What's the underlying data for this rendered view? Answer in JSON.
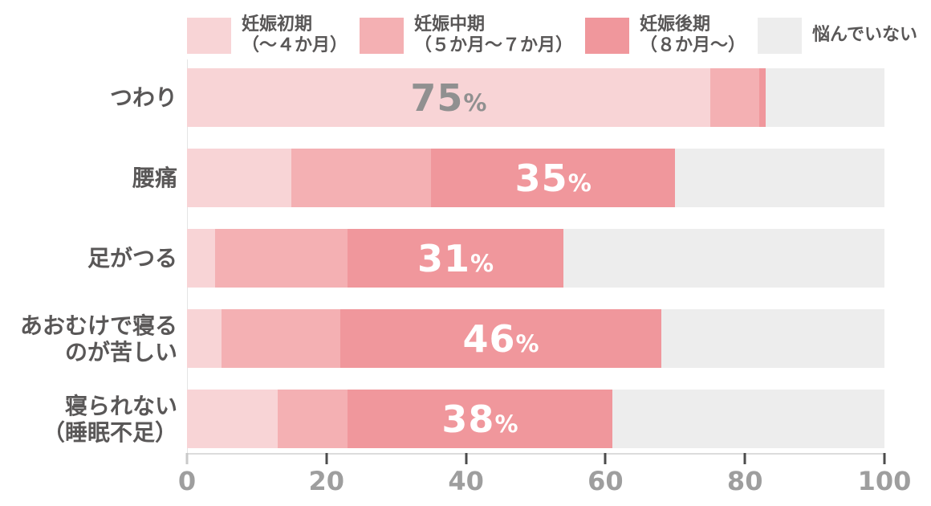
{
  "chart_data": {
    "type": "bar",
    "orientation": "horizontal",
    "stacked": true,
    "title": "",
    "xlabel": "",
    "ylabel": "",
    "xlim": [
      0,
      100
    ],
    "x_ticks": [
      0,
      20,
      40,
      60,
      80,
      100
    ],
    "grid": false,
    "legend_position": "top",
    "categories": [
      "つわり",
      "腰痛",
      "足がつる",
      "あおむけで寝るのが苦しい",
      "寝られない（睡眠不足）"
    ],
    "category_label_lines": [
      [
        "つわり"
      ],
      [
        "腰痛"
      ],
      [
        "足がつる"
      ],
      [
        "あおむけで寝る",
        "のが苦しい"
      ],
      [
        "寝られない",
        "（睡眠不足）"
      ]
    ],
    "series": [
      {
        "name": "妊娠初期（～４か月）",
        "color": "#f8d4d6",
        "values": [
          75,
          15,
          4,
          5,
          13
        ]
      },
      {
        "name": "妊娠中期（５か月～７か月）",
        "color": "#f4b0b3",
        "values": [
          7,
          20,
          19,
          17,
          10
        ]
      },
      {
        "name": "妊娠後期（８か月～）",
        "color": "#f0979c",
        "values": [
          1,
          35,
          31,
          46,
          38
        ]
      },
      {
        "name": "悩んでいない",
        "color": "#ededed",
        "values": [
          17,
          30,
          46,
          32,
          39
        ]
      }
    ],
    "bar_value_labels": [
      {
        "text": "75",
        "suffix": "%",
        "segment_index": 0,
        "color": "#909090"
      },
      {
        "text": "35",
        "suffix": "%",
        "segment_index": 2,
        "color": "#ffffff"
      },
      {
        "text": "31",
        "suffix": "%",
        "segment_index": 2,
        "color": "#ffffff"
      },
      {
        "text": "46",
        "suffix": "%",
        "segment_index": 2,
        "color": "#ffffff"
      },
      {
        "text": "38",
        "suffix": "%",
        "segment_index": 2,
        "color": "#ffffff"
      }
    ]
  },
  "legend": {
    "items": [
      {
        "line1": "妊娠初期",
        "line2": "（～４か月）",
        "color": "#f8d4d6"
      },
      {
        "line1": "妊娠中期",
        "line2": "（５か月～７か月）",
        "color": "#f4b0b3"
      },
      {
        "line1": "妊娠後期",
        "line2": "（８か月～）",
        "color": "#f0979c"
      },
      {
        "line1": "悩んでいない",
        "line2": "",
        "color": "#ededed"
      }
    ]
  },
  "axis": {
    "tick_labels": [
      "0",
      "20",
      "40",
      "60",
      "80",
      "100"
    ]
  },
  "colors": {
    "category_label": "#595757",
    "tick_label": "#9e9e9e",
    "axis_line": "#dcdcdc",
    "tick_mark": "#4c4c4c"
  }
}
